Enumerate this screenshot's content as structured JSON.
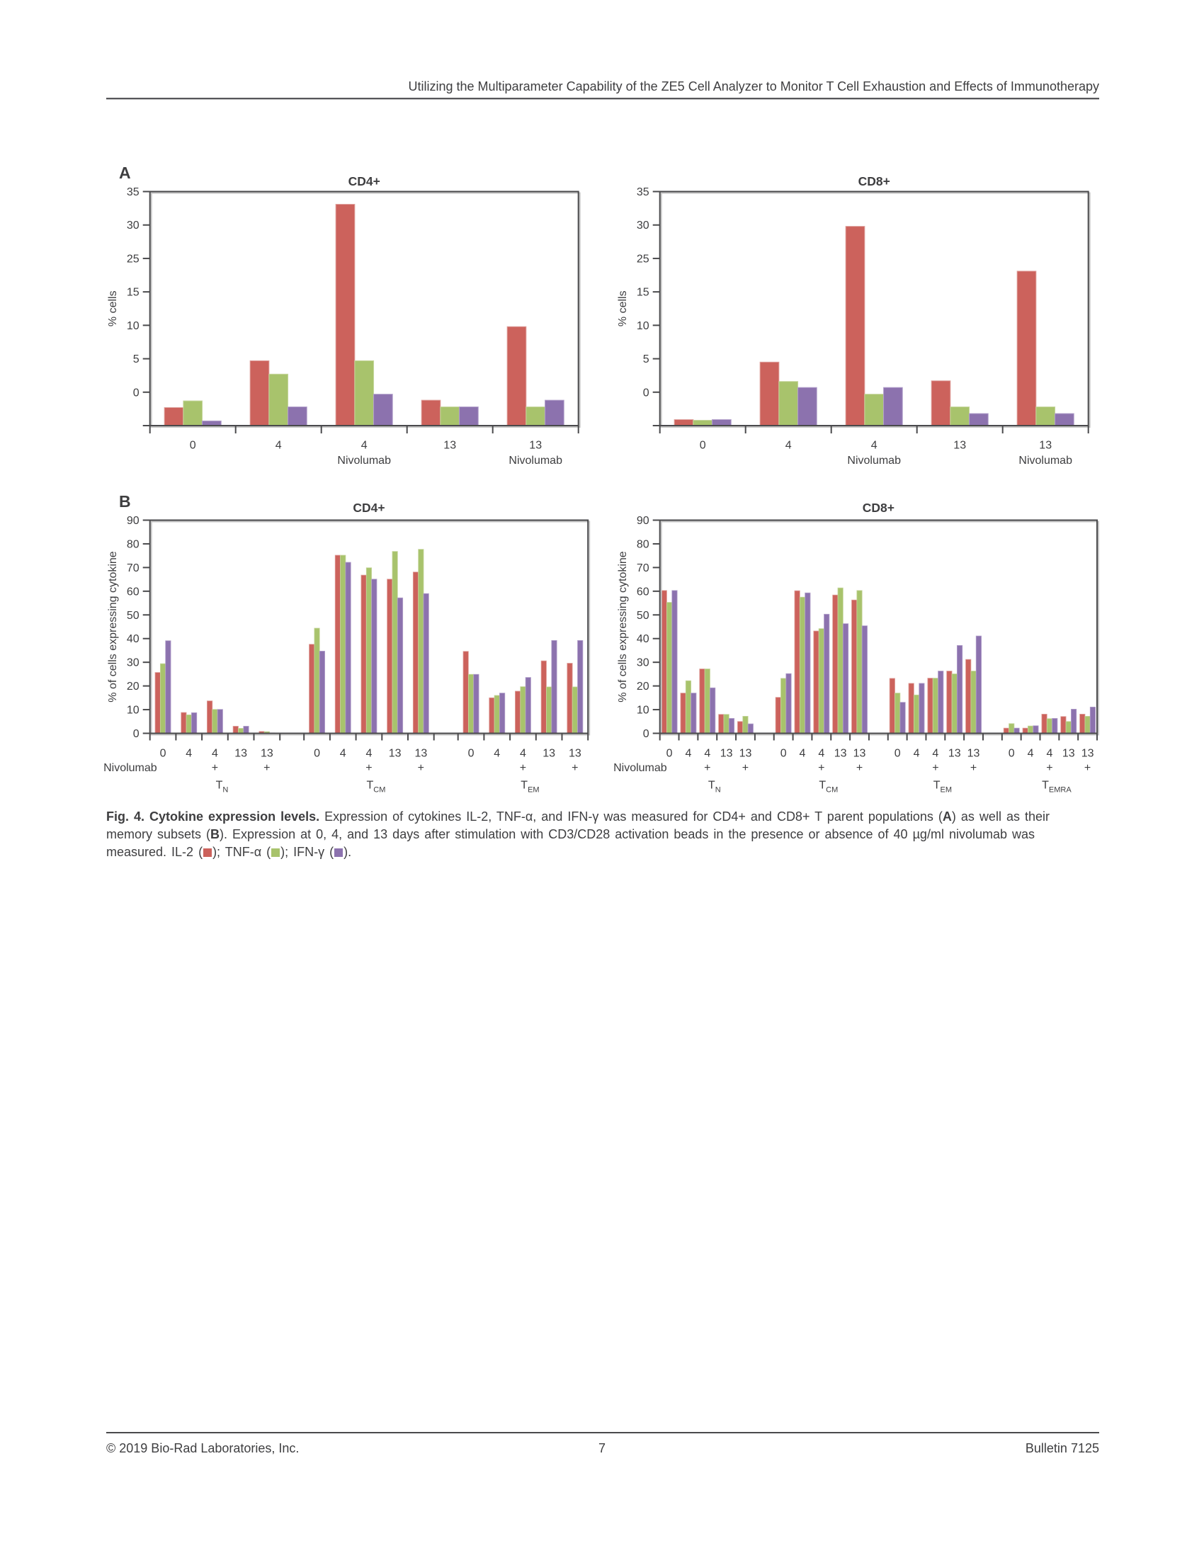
{
  "header": {
    "title": "Utilizing the Multiparameter Capability of the ZE5 Cell Analyzer to Monitor T Cell Exhaustion and Effects of Immunotherapy"
  },
  "panels": {
    "a_label": "A",
    "b_label": "B"
  },
  "series": [
    {
      "name": "IL-2",
      "color": "#CC625C",
      "edge": "#DFA09C"
    },
    {
      "name": "TNF-α",
      "color": "#A8C36C",
      "edge": "#C6D69D"
    },
    {
      "name": "IFN-γ",
      "color": "#8C72AE",
      "edge": "#B2A0CB"
    }
  ],
  "chart_data": [
    {
      "id": "a-cd4",
      "panel": "A",
      "type": "bar",
      "title": "CD4+",
      "ylabel": "% cells",
      "y_tick_labels": [
        "35",
        "30",
        "25",
        "15",
        "10",
        "5",
        "0"
      ],
      "y_anchors": [
        35,
        30,
        25,
        15,
        10,
        5,
        0,
        -5
      ],
      "x_categories": [
        "0",
        "4",
        "4",
        "13",
        "13"
      ],
      "x_sublabels": [
        "",
        "",
        "Nivolumab",
        "",
        "Nivolumab"
      ],
      "series": [
        {
          "name": "IL-2",
          "values": [
            -2.3,
            4.7,
            33.1,
            -1.2,
            9.8
          ]
        },
        {
          "name": "TNF-α",
          "values": [
            -1.3,
            2.7,
            4.7,
            -2.2,
            -2.2
          ]
        },
        {
          "name": "IFN-γ",
          "values": [
            -4.3,
            -2.2,
            -0.3,
            -2.2,
            -1.2
          ]
        }
      ]
    },
    {
      "id": "a-cd8",
      "panel": "A",
      "type": "bar",
      "title": "CD8+",
      "ylabel": "% cells",
      "y_tick_labels": [
        "35",
        "30",
        "25",
        "15",
        "10",
        "5",
        "0"
      ],
      "y_anchors": [
        35,
        30,
        25,
        15,
        10,
        5,
        0,
        -5
      ],
      "x_categories": [
        "0",
        "4",
        "4",
        "13",
        "13"
      ],
      "x_sublabels": [
        "",
        "",
        "Nivolumab",
        "",
        "Nivolumab"
      ],
      "series": [
        {
          "name": "IL-2",
          "values": [
            -4.1,
            4.5,
            29.8,
            1.7,
            21.2
          ]
        },
        {
          "name": "TNF-α",
          "values": [
            -4.2,
            1.6,
            -0.3,
            -2.2,
            -2.2
          ]
        },
        {
          "name": "IFN-γ",
          "values": [
            -4.1,
            0.7,
            0.7,
            -3.2,
            -3.2
          ]
        }
      ]
    },
    {
      "id": "b-cd4",
      "panel": "B",
      "type": "grouped-bar",
      "title": "CD4+",
      "ylabel": "% of cells expressing cytokine",
      "ymax": 90,
      "ystep": 10,
      "x_categories": [
        "0",
        "4",
        "4",
        "13",
        "13"
      ],
      "x_plus": [
        false,
        false,
        true,
        false,
        true
      ],
      "row_label": "Nivolumab",
      "groups": [
        {
          "label": "T",
          "subscript": "N",
          "series": [
            {
              "name": "IL-2",
              "values": [
                25.7,
                8.8,
                13.7,
                3.0,
                0.8
              ]
            },
            {
              "name": "TNF-α",
              "values": [
                29.4,
                7.8,
                10.1,
                2.1,
                0.7
              ]
            },
            {
              "name": "IFN-γ",
              "values": [
                39.1,
                8.7,
                10.1,
                3.0,
                0.2
              ]
            }
          ]
        },
        {
          "label": "T",
          "subscript": "CM",
          "series": [
            {
              "name": "IL-2",
              "values": [
                37.6,
                75.2,
                66.8,
                65.1,
                68.1
              ]
            },
            {
              "name": "TNF-α",
              "values": [
                44.4,
                75.2,
                69.9,
                76.8,
                77.7
              ]
            },
            {
              "name": "IFN-γ",
              "values": [
                34.7,
                72.2,
                65.1,
                57.2,
                59.0
              ]
            }
          ]
        },
        {
          "label": "T",
          "subscript": "EM",
          "series": [
            {
              "name": "IL-2",
              "values": [
                34.6,
                15.0,
                17.8,
                30.6,
                29.6
              ]
            },
            {
              "name": "TNF-α",
              "values": [
                24.9,
                16.0,
                19.7,
                19.6,
                19.6
              ]
            },
            {
              "name": "IFN-γ",
              "values": [
                24.9,
                17.0,
                23.6,
                39.2,
                39.2
              ]
            }
          ]
        }
      ]
    },
    {
      "id": "b-cd8",
      "panel": "B",
      "type": "grouped-bar",
      "title": "CD8+",
      "ylabel": "% of cells expressing cytokine",
      "ymax": 90,
      "ystep": 10,
      "x_categories": [
        "0",
        "4",
        "4",
        "13",
        "13"
      ],
      "x_plus": [
        false,
        false,
        true,
        false,
        true
      ],
      "row_label": "Nivolumab",
      "groups": [
        {
          "label": "T",
          "subscript": "N",
          "series": [
            {
              "name": "IL-2",
              "values": [
                60.3,
                17.0,
                27.2,
                8.0,
                5.0
              ]
            },
            {
              "name": "TNF-α",
              "values": [
                55.3,
                22.2,
                27.2,
                8.0,
                7.2
              ]
            },
            {
              "name": "IFN-γ",
              "values": [
                60.3,
                17.0,
                19.2,
                6.3,
                4.0
              ]
            }
          ]
        },
        {
          "label": "T",
          "subscript": "CM",
          "series": [
            {
              "name": "IL-2",
              "values": [
                15.2,
                60.2,
                43.2,
                58.4,
                56.3
              ]
            },
            {
              "name": "TNF-α",
              "values": [
                23.2,
                57.5,
                44.2,
                61.4,
                60.3
              ]
            },
            {
              "name": "IFN-γ",
              "values": [
                25.2,
                59.3,
                50.3,
                46.3,
                45.4
              ]
            }
          ]
        },
        {
          "label": "T",
          "subscript": "EM",
          "series": [
            {
              "name": "IL-2",
              "values": [
                23.2,
                21.1,
                23.3,
                26.3,
                31.2
              ]
            },
            {
              "name": "TNF-α",
              "values": [
                17.0,
                16.2,
                23.3,
                25.1,
                26.3
              ]
            },
            {
              "name": "IFN-γ",
              "values": [
                13.1,
                21.1,
                26.3,
                37.1,
                41.1
              ]
            }
          ]
        },
        {
          "label": "T",
          "subscript": "EMRA",
          "series": [
            {
              "name": "IL-2",
              "values": [
                2.2,
                2.2,
                8.1,
                7.1,
                8.1
              ]
            },
            {
              "name": "TNF-α",
              "values": [
                4.1,
                3.1,
                6.2,
                5.0,
                7.2
              ]
            },
            {
              "name": "IFN-γ",
              "values": [
                2.2,
                3.2,
                6.3,
                10.2,
                11.1
              ]
            }
          ]
        }
      ]
    }
  ],
  "caption": {
    "fig_bold": "Fig. 4. Cytokine expression levels.",
    "seg1": " Expression of cytokines IL-2, TNF-α, and IFN-γ was measured for CD4+ and CD8+ T parent populations (",
    "bold_a": "A",
    "seg2": ") as well as their memory subsets (",
    "bold_b": "B",
    "seg3": "). Expression at 0, 4, and 13 days after stimulation with CD3/CD28 activation beads in the presence or absence of 40 µg/ml nivolumab was measured. "
  },
  "footer": {
    "copyright": "© 2019 Bio-Rad Laboratories, Inc.",
    "page": "7",
    "bulletin": "Bulletin 7125"
  }
}
